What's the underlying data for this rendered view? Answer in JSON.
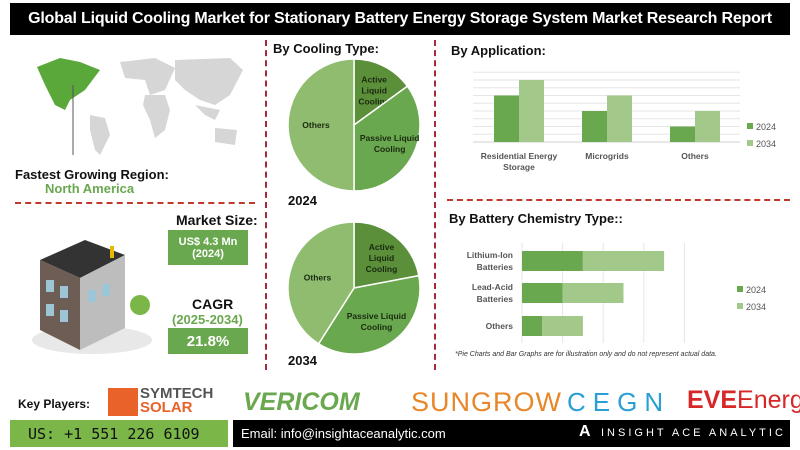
{
  "title": "Global Liquid Cooling Market for Stationary Battery Energy Storage System Market Research Report",
  "region": {
    "label": "Fastest Growing Region:",
    "value": "North America"
  },
  "market_size": {
    "label": "Market Size:",
    "value": "US$ 4.3 Mn",
    "year": "(2024)"
  },
  "cagr": {
    "label": "CAGR",
    "period": "(2025-2034)",
    "value": "21.8%"
  },
  "colors": {
    "dark_green": "#5b8f3a",
    "mid_green": "#6aa84f",
    "light_green": "#a3c98a",
    "pie_light": "#8fbc6f",
    "accent_red": "#c0392b"
  },
  "chart_data": [
    {
      "type": "pie",
      "title": "By Cooling Type:",
      "caption": "2024",
      "slices": [
        {
          "label": "Active Liquid Cooling",
          "value": 15
        },
        {
          "label": "Passive Liquid Cooling",
          "value": 35
        },
        {
          "label": "Others",
          "value": 50
        }
      ]
    },
    {
      "type": "pie",
      "caption": "2034",
      "slices": [
        {
          "label": "Active Liquid Cooling",
          "value": 22
        },
        {
          "label": "Passive Liquid Cooling",
          "value": 37
        },
        {
          "label": "Others",
          "value": 41
        }
      ]
    },
    {
      "type": "bar",
      "title": "By Application:",
      "categories": [
        "Residential Energy Storage",
        "Microgrids",
        "Others"
      ],
      "series": [
        {
          "name": "2024",
          "values": [
            6,
            4,
            2
          ]
        },
        {
          "name": "2034",
          "values": [
            8,
            6,
            4
          ]
        }
      ],
      "ylim": [
        0,
        9
      ],
      "grid": true,
      "legend": "right"
    },
    {
      "type": "bar",
      "orientation": "horizontal",
      "stacked": true,
      "title": "By Battery Chemistry Type::",
      "categories": [
        "Lithium-Ion Batteries",
        "Lead-Acid Batteries",
        "Others"
      ],
      "series": [
        {
          "name": "2024",
          "values": [
            3,
            2,
            1
          ]
        },
        {
          "name": "2034",
          "values": [
            4,
            3,
            2
          ]
        }
      ],
      "xlim": [
        0,
        8
      ],
      "grid": true,
      "legend": "right"
    }
  ],
  "footnote": "*Pie Charts and Bar Graphs are for illustration only and do not represent actual data.",
  "footer": {
    "key_players_label": "Key Players:",
    "players": [
      "SYMTECH",
      "SOLAR",
      "VERICOM",
      "SUNGROW",
      "CEGN",
      "EVE",
      "Energy"
    ],
    "phone": "US: +1 551 226 6109",
    "email": "Email: info@insightaceanalytic.com",
    "brand": "INSIGHT ACE ANALYTIC"
  }
}
